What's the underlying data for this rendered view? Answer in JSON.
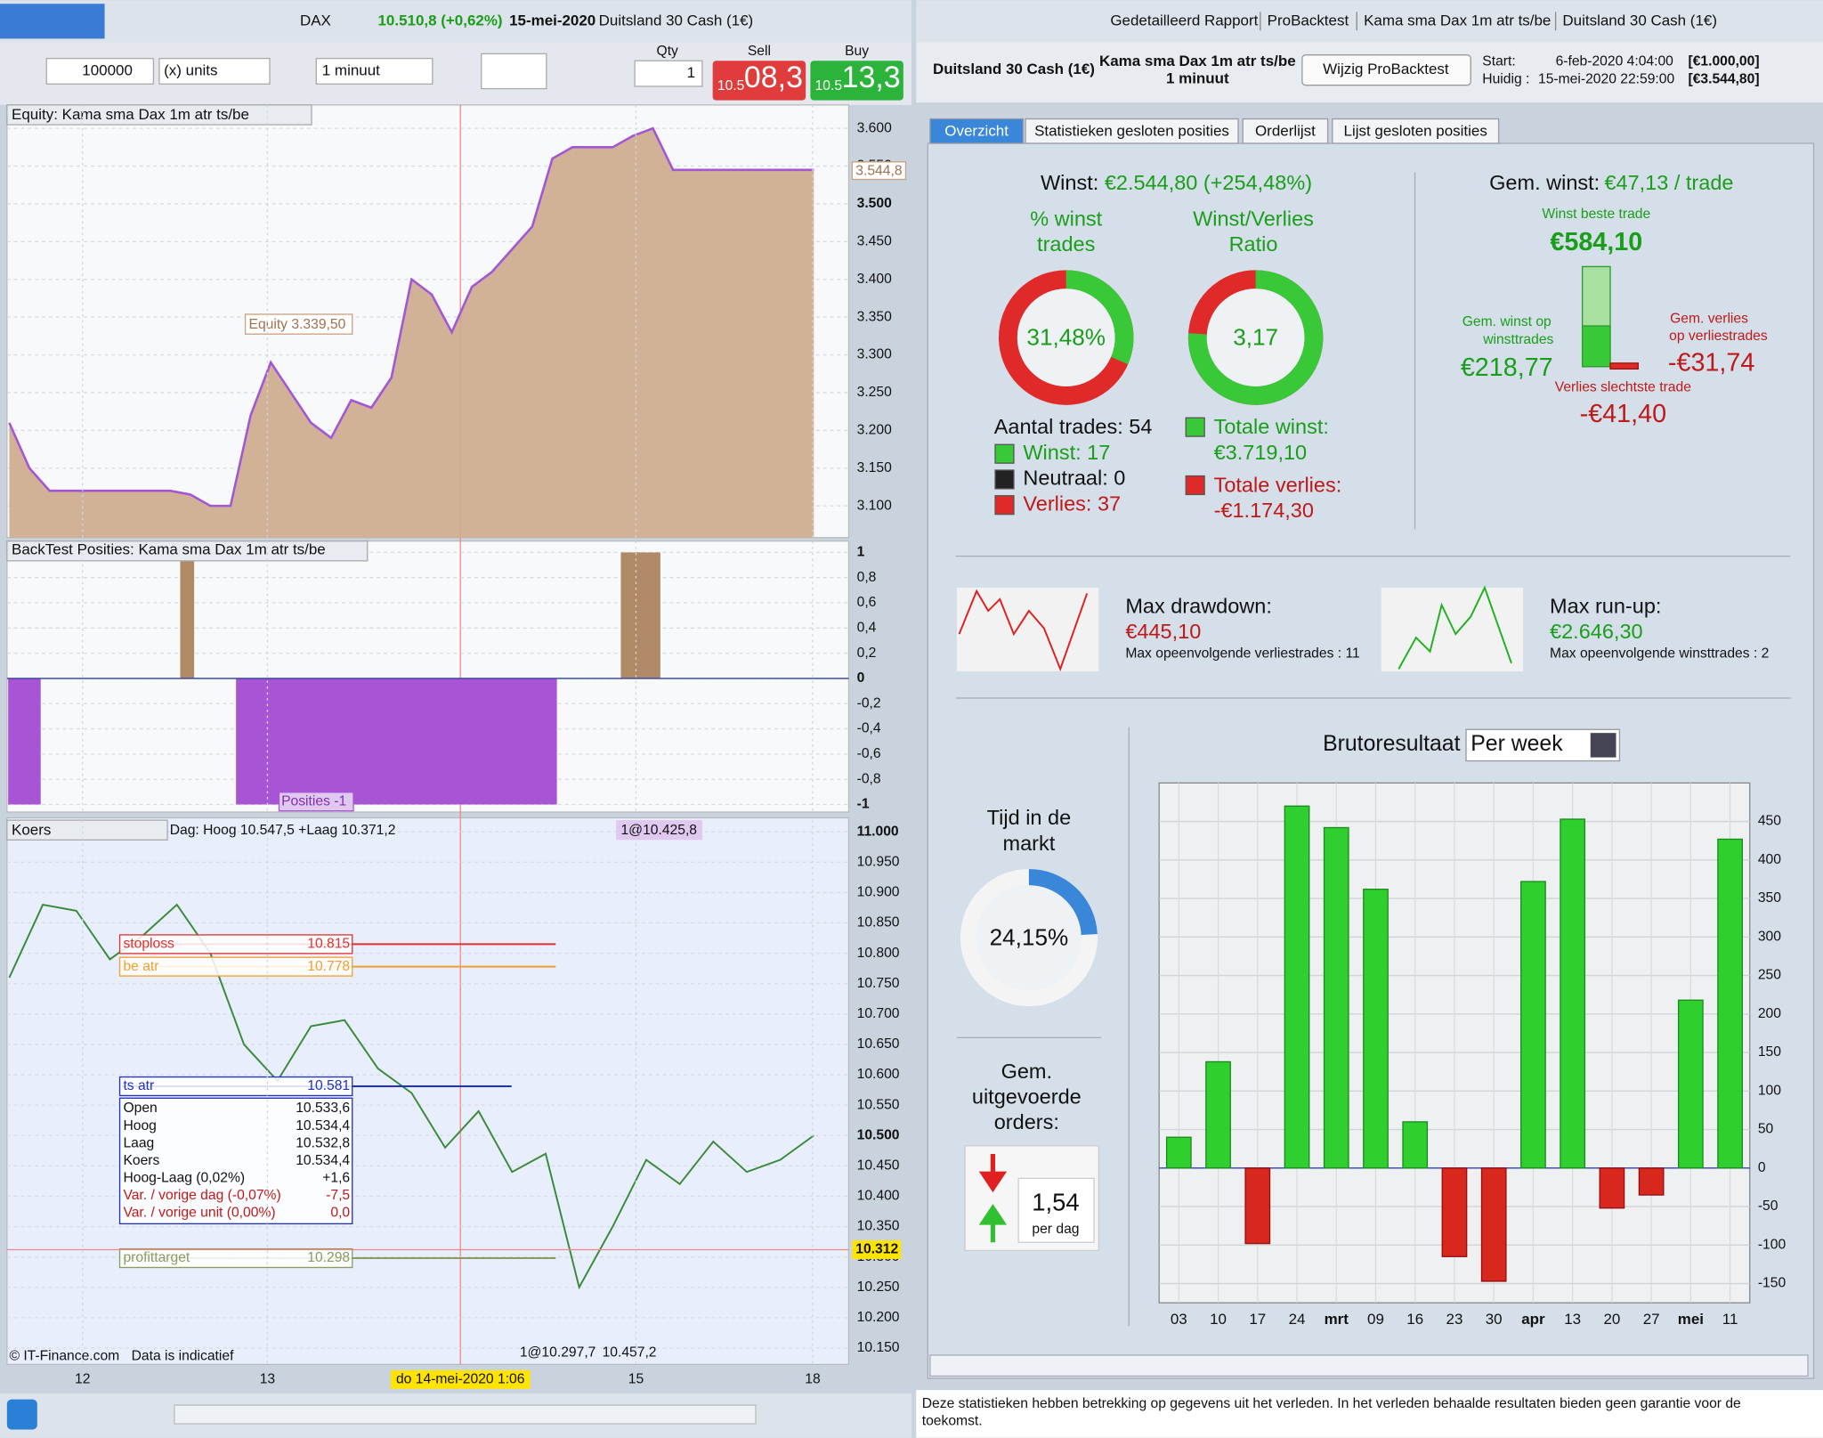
{
  "left": {
    "toolbar": {
      "instrument": "DAX",
      "quote": "10.510,8 (+0,62%)",
      "date": "15-mei-2020",
      "market": "Duitsland 30 Cash (1€)",
      "amount": "100000",
      "units": "(x) units",
      "interval": "1 minuut",
      "qty_label": "Qty",
      "qty": "1",
      "sell_label": "Sell",
      "sell_prefix": "10.5",
      "sell_price": "08,3",
      "buy_label": "Buy",
      "buy_prefix": "10.5",
      "buy_price": "13,3"
    },
    "equity": {
      "type": "area",
      "title": "Equity: Kama sma Dax 1m atr ts/be",
      "tag": "Equity  3.339,50",
      "last": "3.544,8",
      "ylim": [
        3058,
        3631
      ],
      "yticks": [
        {
          "value": 3100,
          "label": "3.100"
        },
        {
          "value": 3150,
          "label": "3.150"
        },
        {
          "value": 3200,
          "label": "3.200"
        },
        {
          "value": 3250,
          "label": "3.250"
        },
        {
          "value": 3300,
          "label": "3.300"
        },
        {
          "value": 3350,
          "label": "3.350"
        },
        {
          "value": 3400,
          "label": "3.400"
        },
        {
          "value": 3450,
          "label": "3.450"
        },
        {
          "value": 3500,
          "label": "3.500"
        },
        {
          "value": 3550,
          "label": "3.550"
        },
        {
          "value": 3600,
          "label": "3.600"
        }
      ],
      "values": [
        3210,
        3150,
        3120,
        3120,
        3120,
        3120,
        3120,
        3120,
        3120,
        3115,
        3100,
        3100,
        3220,
        3290,
        3250,
        3210,
        3190,
        3240,
        3230,
        3270,
        3400,
        3380,
        3330,
        3390,
        3410,
        3440,
        3470,
        3560,
        3575,
        3575,
        3575,
        3590,
        3600,
        3545,
        3545,
        3545,
        3545,
        3545,
        3545,
        3545,
        3545
      ]
    },
    "positions": {
      "type": "bar",
      "title": "BackTest Posities: Kama sma Dax 1m atr ts/be",
      "tag": "Posities -1",
      "ylim": [
        -1.06,
        1.09
      ],
      "yticks": [
        1,
        {
          "value": 0.8,
          "label": "0,8"
        },
        {
          "value": 0.6,
          "label": "0,6"
        },
        {
          "value": 0.4,
          "label": "0,4"
        },
        {
          "value": 0.2,
          "label": "0,2"
        },
        0,
        {
          "value": -0.2,
          "label": "-0,2"
        },
        {
          "value": -0.4,
          "label": "-0,4"
        },
        {
          "value": -0.6,
          "label": "-0,6"
        },
        {
          "value": -0.8,
          "label": "-0,8"
        },
        -1
      ],
      "values": [
        -1,
        1,
        -1,
        1
      ]
    },
    "price": {
      "type": "line",
      "title": "Koers",
      "legend": "Dag: Hoog 10.547,5 +Laag 10.371,2",
      "ylim": [
        10123,
        11023
      ],
      "yticks": [
        {
          "value": 10150,
          "label": "10.150"
        },
        {
          "value": 10200,
          "label": "10.200"
        },
        {
          "value": 10250,
          "label": "10.250"
        },
        {
          "value": 10300,
          "label": "10.300"
        },
        {
          "value": 10350,
          "label": "10.350"
        },
        {
          "value": 10400,
          "label": "10.400"
        },
        {
          "value": 10450,
          "label": "10.450"
        },
        {
          "value": 10500,
          "label": "10.500"
        },
        {
          "value": 10550,
          "label": "10.550"
        },
        {
          "value": 10600,
          "label": "10.600"
        },
        {
          "value": 10650,
          "label": "10.650"
        },
        {
          "value": 10700,
          "label": "10.700"
        },
        {
          "value": 10750,
          "label": "10.750"
        },
        {
          "value": 10800,
          "label": "10.800"
        },
        {
          "value": 10850,
          "label": "10.850"
        },
        {
          "value": 10900,
          "label": "10.900"
        },
        {
          "value": 10950,
          "label": "10.950"
        },
        {
          "value": 11000,
          "label": "11.000"
        }
      ],
      "values": [
        10760,
        10880,
        10870,
        10790,
        10830,
        10880,
        10800,
        10650,
        10590,
        10680,
        10690,
        10610,
        10570,
        10480,
        10540,
        10440,
        10470,
        10250,
        10350,
        10460,
        10420,
        10490,
        10440,
        10460,
        10500
      ],
      "levels": [
        {
          "name": "stoploss",
          "color": "#e03030",
          "level": {
            "value": 10815,
            "label": "10.815"
          }
        },
        {
          "name": "be atr",
          "color": "#f0a030",
          "level": {
            "value": 10778,
            "label": "10.778"
          }
        },
        {
          "name": "ts atr",
          "color": "#2030c0",
          "level": {
            "value": 10581,
            "label": "10.581"
          }
        },
        {
          "name": "profittarget",
          "color": "#8a9a60",
          "level": {
            "value": 10298,
            "label": "10.298"
          }
        }
      ],
      "current": {
        "value": 10312,
        "label": "10.312"
      },
      "info": [
        [
          "Open",
          "10.533,6"
        ],
        [
          "Hoog",
          "10.534,4"
        ],
        [
          "Laag",
          "10.532,8"
        ],
        [
          "Koers",
          "10.534,4"
        ],
        [
          "Hoog-Laag (0,02%)",
          "+1,6"
        ],
        [
          "Var. / vorige dag (-0,07%)",
          "-7,5"
        ],
        [
          "Var. / vorige unit (0,00%)",
          "0,0"
        ]
      ],
      "orders": [
        "1@10.425,8",
        "1@10.297,7",
        "10.457,2"
      ],
      "xticks": [
        "12",
        "13",
        "15",
        "18"
      ],
      "cursor": "do 14-mei-2020 1:06",
      "copyright": "© IT-Finance.com",
      "disclaimer": "Data is indicatief"
    }
  },
  "right": {
    "titlebar": [
      "Gedetailleerd Rapport",
      "ProBacktest",
      "Kama sma Dax 1m atr ts/be",
      "Duitsland 30 Cash (1€)"
    ],
    "header": {
      "market": "Duitsland 30 Cash (1€)",
      "strategy": "Kama sma Dax 1m atr ts/be",
      "interval": "1 minuut",
      "button": "Wijzig ProBacktest",
      "start_label": "Start:",
      "start": "6-feb-2020 4:04:00",
      "start_capital": "[€1.000,00]",
      "current_label": "Huidig :",
      "current": "15-mei-2020 22:59:00",
      "current_capital": "[€3.544,80]"
    },
    "tabs": [
      "Overzicht",
      "Statistieken gesloten posities",
      "Orderlijst",
      "Lijst gesloten posities"
    ],
    "summary": {
      "profit_label": "Winst:",
      "profit": "€2.544,80 (+254,48%)",
      "win_pct": {
        "title": [
          "% winst",
          "trades"
        ],
        "value": 31.48,
        "label": "31,48%"
      },
      "ratio": {
        "title": [
          "Winst/Verlies",
          "Ratio"
        ],
        "value": 3.17,
        "label": "3,17"
      },
      "trades": "Aantal trades: 54",
      "wins": "Winst: 17",
      "neutral": "Neutraal: 0",
      "losses": "Verlies: 37",
      "total_win_label": "Totale winst:",
      "total_win": "€3.719,10",
      "total_loss_label": "Totale verlies:",
      "total_loss": "-€1.174,30"
    },
    "averages": {
      "avg_label": "Gem. winst:",
      "avg": "€47,13 / trade",
      "best_label": "Winst beste trade",
      "best": "€584,10",
      "avg_win_label": [
        "Gem. winst op",
        "winsttrades"
      ],
      "avg_win": "€218,77",
      "avg_loss_label": [
        "Gem. verlies",
        "op verliestrades"
      ],
      "avg_loss": "-€31,74",
      "worst_label": "Verlies slechtste trade",
      "worst": "-€41,40"
    },
    "drawdown": {
      "label": "Max drawdown:",
      "value": "€445,10",
      "streak": "Max opeenvolgende verliestrades : 11"
    },
    "runup": {
      "label": "Max run-up:",
      "value": "€2.646,30",
      "streak": "Max opeenvolgende winsttrades : 2"
    },
    "market_time": {
      "title": [
        "Tijd in de",
        "markt"
      ],
      "value": 24.15,
      "label": "24,15%"
    },
    "orders": {
      "title": [
        "Gem.",
        "uitgevoerde",
        "orders:"
      ],
      "value": "1,54",
      "unit": "per dag"
    },
    "weekly": {
      "type": "bar",
      "title": "Brutoresultaat",
      "period": "Per week",
      "categories": [
        "03",
        "10",
        "17",
        "24",
        "mrt",
        "09",
        "16",
        "23",
        "30",
        "apr",
        "13",
        "20",
        "27",
        "mei",
        "11"
      ],
      "values": [
        40,
        138,
        -98,
        470,
        442,
        362,
        60,
        -115,
        -147,
        372,
        453,
        -52,
        -35,
        218,
        427
      ],
      "ylim": [
        -175,
        500
      ],
      "yticks": [
        -150,
        -100,
        -50,
        0,
        50,
        100,
        150,
        200,
        250,
        300,
        350,
        400,
        450
      ]
    },
    "footer": [
      "Deze statistieken hebben betrekking op gegevens uit het verleden. In het verleden behaalde resultaten bieden geen garantie voor de",
      "toekomst."
    ]
  }
}
